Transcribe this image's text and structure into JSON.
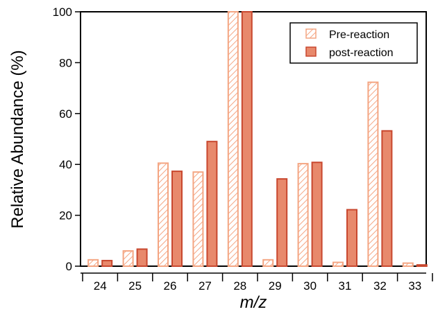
{
  "chart_data": {
    "type": "bar",
    "categories": [
      "24",
      "25",
      "26",
      "27",
      "28",
      "29",
      "30",
      "31",
      "32",
      "33"
    ],
    "series": [
      {
        "name": "Pre-reaction",
        "values": [
          2.5,
          6,
          40.5,
          37,
          100,
          2.5,
          40.3,
          1.5,
          72.3,
          1.2
        ],
        "fill": "hatched",
        "color": "#F4A582"
      },
      {
        "name": "post-reaction",
        "values": [
          2.2,
          6.7,
          37.3,
          49,
          100,
          34.3,
          40.8,
          22.2,
          53.2,
          0.5
        ],
        "fill": "solid",
        "color": "#E8896C",
        "stroke": "#C8472E"
      }
    ],
    "xlabel": "m/z",
    "ylabel": "Relative Abundance (%)",
    "ylim": [
      0,
      100
    ],
    "yticks": [
      0,
      20,
      40,
      60,
      80,
      100
    ],
    "grid": false,
    "legend": "top-right"
  }
}
